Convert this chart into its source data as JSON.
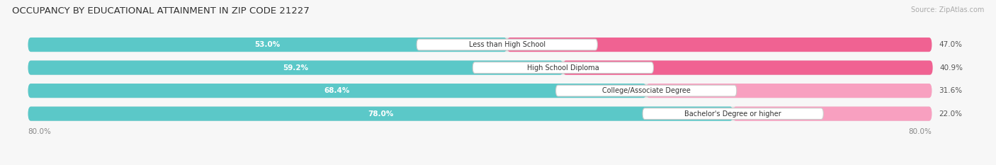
{
  "title": "OCCUPANCY BY EDUCATIONAL ATTAINMENT IN ZIP CODE 21227",
  "source": "Source: ZipAtlas.com",
  "categories": [
    "Less than High School",
    "High School Diploma",
    "College/Associate Degree",
    "Bachelor's Degree or higher"
  ],
  "owner_values": [
    53.0,
    59.2,
    68.4,
    78.0
  ],
  "renter_values": [
    47.0,
    40.9,
    31.6,
    22.0
  ],
  "owner_color": "#5BC8C8",
  "renter_color": "#F06292",
  "renter_color_light": "#F8A0C0",
  "track_color": "#E0E0E0",
  "background_color": "#f7f7f7",
  "x_left_label": "80.0%",
  "x_right_label": "80.0%"
}
